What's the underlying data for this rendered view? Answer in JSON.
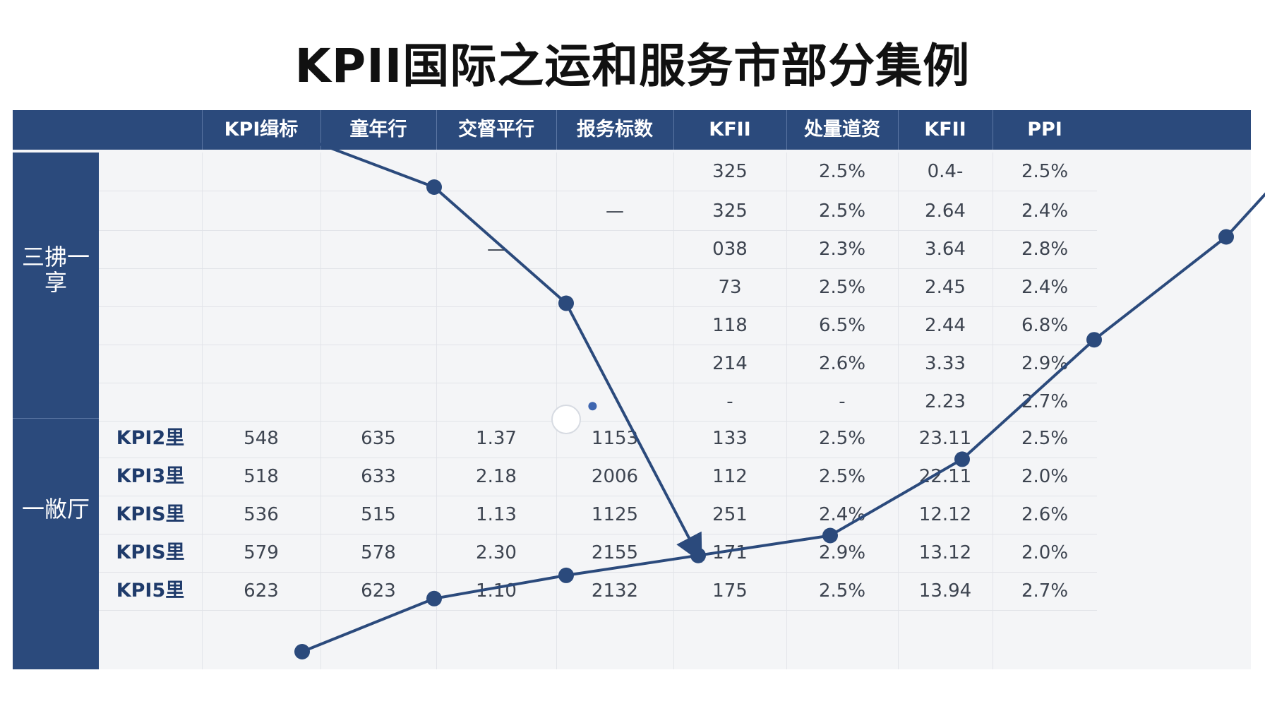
{
  "title": "KPII国际之运和服务市部分集例",
  "header": [
    "",
    "KPI缉标",
    "童年行",
    "交督平行",
    "报务标数",
    "KFII",
    "处量道资",
    "KFII",
    "PPI"
  ],
  "side_labels": [
    "三拂一享",
    "一敝厅"
  ],
  "upper_rows": [
    [
      "",
      "",
      "",
      "",
      "325",
      "2.5%",
      "0.4-",
      "2.5%"
    ],
    [
      "",
      "",
      "",
      "—",
      "325",
      "2.5%",
      "2.64",
      "2.4%"
    ],
    [
      "",
      "",
      "—",
      "",
      "038",
      "2.3%",
      "3.64",
      "2.8%"
    ],
    [
      "",
      "",
      "",
      "",
      "73",
      "2.5%",
      "2.45",
      "2.4%"
    ],
    [
      "",
      "",
      "",
      "",
      "118",
      "6.5%",
      "2.44",
      "6.8%"
    ],
    [
      "",
      "",
      "",
      "",
      "214",
      "2.6%",
      "3.33",
      "2.9%"
    ],
    [
      "",
      "",
      "",
      "",
      "-",
      "-",
      "2.23",
      "2.7%"
    ]
  ],
  "lower_rows": [
    {
      "label": "KPI2里",
      "values": [
        "548",
        "635",
        "1.37",
        "1153",
        "133",
        "2.5%",
        "23.11",
        "2.5%"
      ]
    },
    {
      "label": "KPI3里",
      "values": [
        "518",
        "633",
        "2.18",
        "2006",
        "112",
        "2.5%",
        "22.11",
        "2.0%"
      ]
    },
    {
      "label": "KPIS里",
      "values": [
        "536",
        "515",
        "1.13",
        "1125",
        "251",
        "2.4%",
        "12.12",
        "2.6%"
      ]
    },
    {
      "label": "KPIS里",
      "values": [
        "579",
        "578",
        "2.30",
        "2155",
        "171",
        "2.9%",
        "13.12",
        "2.0%"
      ]
    },
    {
      "label": "KPI5里",
      "values": [
        "623",
        "623",
        "1.10",
        "2132",
        "175",
        "2.5%",
        "13.94",
        "2.7%"
      ]
    }
  ],
  "chart_data": {
    "type": "line",
    "note_colors": {
      "line": "#2b4a7c",
      "header": "#2b4a7c",
      "highlight": "#ffffff"
    },
    "series": [
      {
        "points": [
          [
            1,
            0.5
          ],
          [
            2,
            1.3
          ],
          [
            3,
            1.65
          ],
          [
            4,
            1.95
          ],
          [
            5,
            2.25
          ],
          [
            6,
            3.4
          ],
          [
            7,
            5.2
          ],
          [
            8,
            6.75
          ],
          [
            8.85,
            8.6
          ],
          [
            9,
            8.75
          ]
        ]
      },
      {
        "points": [
          [
            1,
            8.25
          ],
          [
            2,
            7.5
          ],
          [
            3,
            5.75
          ],
          [
            4,
            1.95
          ]
        ],
        "arrow_end": true
      }
    ],
    "markers": [
      {
        "x": 3,
        "y": 4.0,
        "kind": "hollow-highlight"
      },
      {
        "x": 3.2,
        "y": 4.2,
        "kind": "dot-small"
      }
    ]
  }
}
